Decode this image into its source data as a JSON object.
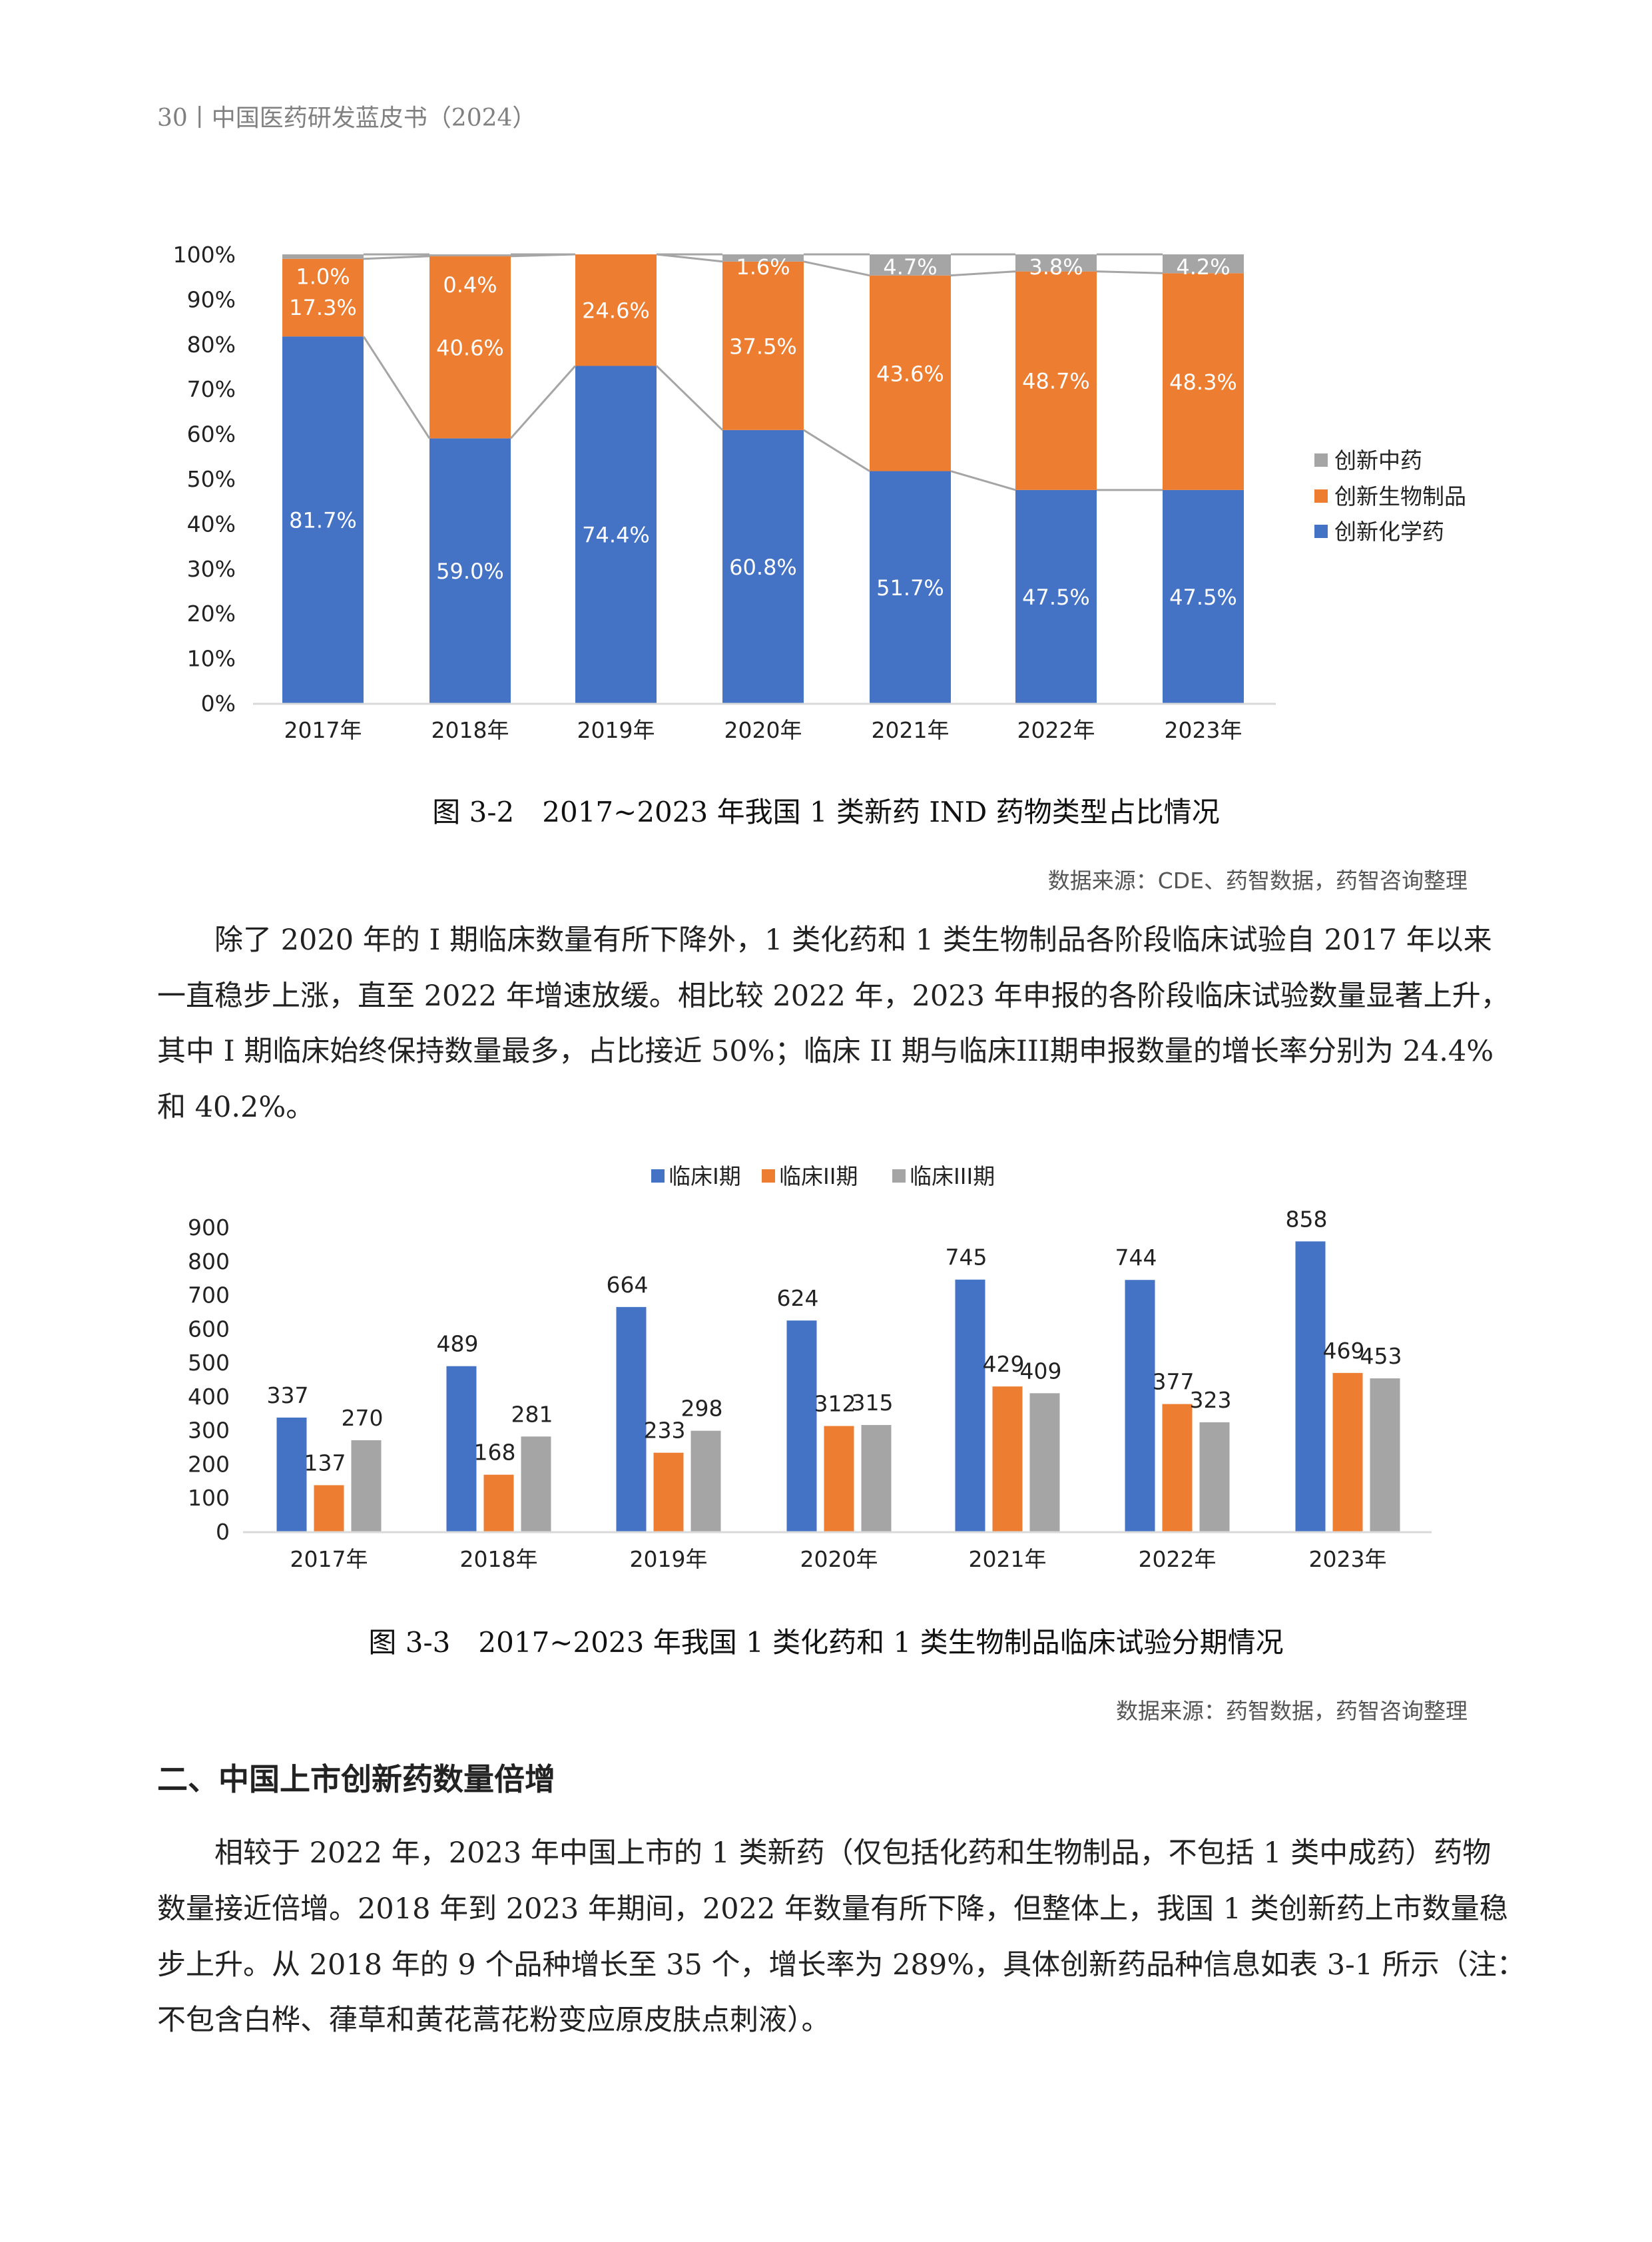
{
  "header": {
    "text": "30丨中国医药研发蓝皮书（2024）"
  },
  "figure1": {
    "caption": "图 3-2　2017~2023 年我国 1 类新药 IND 药物类型占比情况",
    "source": "数据来源：CDE、药智数据，药智咨询整理"
  },
  "paragraph1": {
    "lines": [
      "除了 2020 年的 I 期临床数量有所下降外，1 类化药和 1 类生物制品各阶段临床试验自 2017 年以来",
      "一直稳步上涨，直至 2022 年增速放缓。相比较 2022 年，2023 年申报的各阶段临床试验数量显著上升，",
      "其中 I 期临床始终保持数量最多，占比接近 50%；临床 II 期与临床III期申报数量的增长率分别为 24.4%",
      "和 40.2%。"
    ]
  },
  "figure2": {
    "caption": "图 3-3　2017~2023 年我国 1 类化药和 1 类生物制品临床试验分期情况",
    "source": "数据来源：药智数据，药智咨询整理"
  },
  "section": {
    "heading": "二、中国上市创新药数量倍增"
  },
  "paragraph2": {
    "lines": [
      "相较于 2022 年，2023 年中国上市的 1 类新药（仅包括化药和生物制品，不包括 1 类中成药）药物",
      "数量接近倍增。2018 年到 2023 年期间，2022 年数量有所下降，但整体上，我国 1 类创新药上市数量稳",
      "步上升。从 2018 年的 9 个品种增长至 35 个，增长率为 289%，具体创新药品种信息如表 3-1 所示（注：",
      "不包含白桦、葎草和黄花蒿花粉变应原皮肤点刺液）。"
    ]
  },
  "chart_data": [
    {
      "type": "bar",
      "stacked": true,
      "percent": true,
      "title": "",
      "categories": [
        "2017年",
        "2018年",
        "2019年",
        "2020年",
        "2021年",
        "2022年",
        "2023年"
      ],
      "yticks": [
        "0%",
        "10%",
        "20%",
        "30%",
        "40%",
        "50%",
        "60%",
        "70%",
        "80%",
        "90%",
        "100%"
      ],
      "ylim": [
        0,
        100
      ],
      "legend_position": "right",
      "series": [
        {
          "name": "创新化学药",
          "color": "#4472C4",
          "values": [
            81.7,
            59.0,
            74.4,
            60.8,
            51.7,
            47.5,
            47.5
          ],
          "labels": [
            "81.7%",
            "59.0%",
            "74.4%",
            "60.8%",
            "51.7%",
            "47.5%",
            "47.5%"
          ]
        },
        {
          "name": "创新生物制品",
          "color": "#ED7D31",
          "values": [
            17.3,
            40.6,
            24.6,
            37.5,
            43.6,
            48.7,
            48.3
          ],
          "labels": [
            "17.3%",
            "40.6%",
            "24.6%",
            "37.5%",
            "43.6%",
            "48.7%",
            "48.3%"
          ]
        },
        {
          "name": "创新中药",
          "color": "#A5A5A5",
          "values": [
            1.0,
            0.4,
            0,
            1.6,
            4.7,
            3.8,
            4.2
          ],
          "labels": [
            "1.0%",
            "0.4%",
            "",
            "1.6%",
            "4.7%",
            "3.8%",
            "4.2%"
          ]
        }
      ],
      "legend_order": [
        "创新中药",
        "创新生物制品",
        "创新化学药"
      ]
    },
    {
      "type": "bar",
      "title": "",
      "categories": [
        "2017年",
        "2018年",
        "2019年",
        "2020年",
        "2021年",
        "2022年",
        "2023年"
      ],
      "yticks": [
        "0",
        "100",
        "200",
        "300",
        "400",
        "500",
        "600",
        "700",
        "800",
        "900"
      ],
      "ylim": [
        0,
        900
      ],
      "legend_position": "top",
      "series": [
        {
          "name": "临床I期",
          "color": "#4472C4",
          "values": [
            337,
            489,
            664,
            624,
            745,
            744,
            858
          ]
        },
        {
          "name": "临床II期",
          "color": "#ED7D31",
          "values": [
            137,
            168,
            233,
            312,
            429,
            377,
            469
          ]
        },
        {
          "name": "临床III期",
          "color": "#A5A5A5",
          "values": [
            270,
            281,
            298,
            315,
            409,
            323,
            453
          ]
        }
      ]
    }
  ]
}
